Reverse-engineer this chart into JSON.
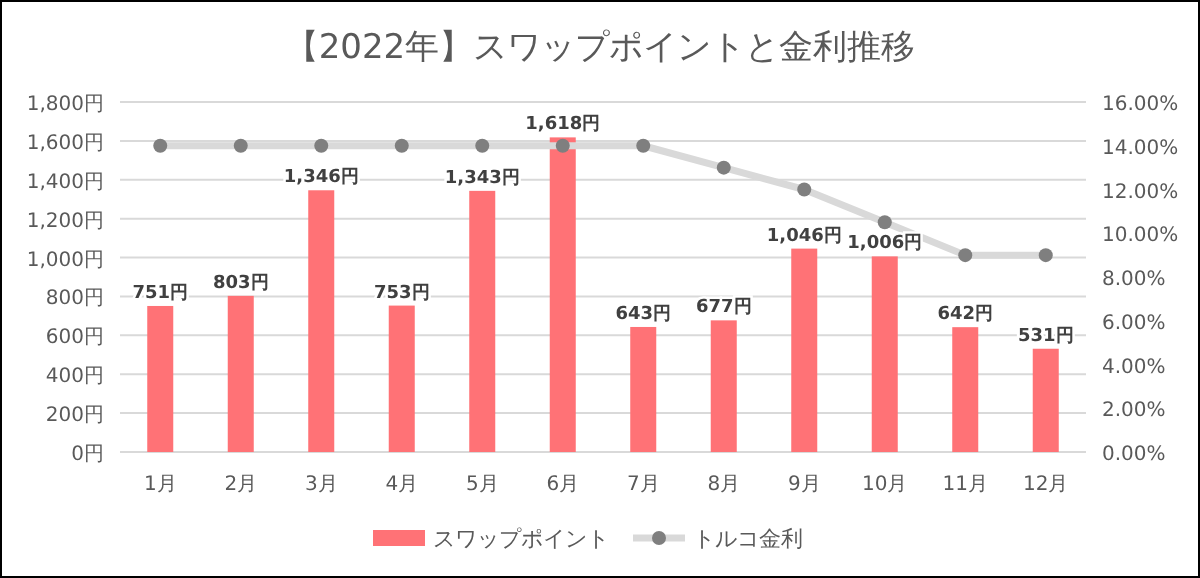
{
  "chart_data": {
    "type": "bar",
    "title": "【2022年】スワップポイントと金利推移",
    "categories": [
      "1月",
      "2月",
      "3月",
      "4月",
      "5月",
      "6月",
      "7月",
      "8月",
      "9月",
      "10月",
      "11月",
      "12月"
    ],
    "series": [
      {
        "name": "スワップポイント",
        "color": "#ff7276",
        "values": [
          751,
          803,
          1346,
          753,
          1343,
          1618,
          643,
          677,
          1046,
          1006,
          642,
          531
        ],
        "value_labels": [
          "751円",
          "803円",
          "1,346円",
          "753円",
          "1,343円",
          "1,618円",
          "643円",
          "677円",
          "1,046円",
          "1,006円",
          "642円",
          "531円"
        ]
      },
      {
        "name": "トルコ金利",
        "type": "line",
        "axis": "y2",
        "color": "#d9d9d9",
        "marker": "circle",
        "values": [
          14,
          14,
          14,
          14,
          14,
          14,
          14,
          13,
          12,
          10.5,
          9,
          9
        ]
      }
    ],
    "ylim": [
      0,
      1800
    ],
    "yticks": [
      {
        "value": 0,
        "label": "0円"
      },
      {
        "value": 200,
        "label": "200円"
      },
      {
        "value": 400,
        "label": "400円"
      },
      {
        "value": 600,
        "label": "600円"
      },
      {
        "value": 800,
        "label": "800円"
      },
      {
        "value": 1000,
        "label": "1,000円"
      },
      {
        "value": 1200,
        "label": "1,200円"
      },
      {
        "value": 1400,
        "label": "1,400円"
      },
      {
        "value": 1600,
        "label": "1,600円"
      },
      {
        "value": 1800,
        "label": "1,800円"
      }
    ],
    "y2lim": [
      0,
      16
    ],
    "y2ticks": [
      {
        "value": 0,
        "label": "0.00%"
      },
      {
        "value": 2,
        "label": "2.00%"
      },
      {
        "value": 4,
        "label": "4.00%"
      },
      {
        "value": 6,
        "label": "6.00%"
      },
      {
        "value": 8,
        "label": "8.00%"
      },
      {
        "value": 10,
        "label": "10.00%"
      },
      {
        "value": 12,
        "label": "12.00%"
      },
      {
        "value": 14,
        "label": "14.00%"
      },
      {
        "value": 16,
        "label": "16.00%"
      }
    ],
    "grid": "y",
    "legend": "bottom"
  }
}
